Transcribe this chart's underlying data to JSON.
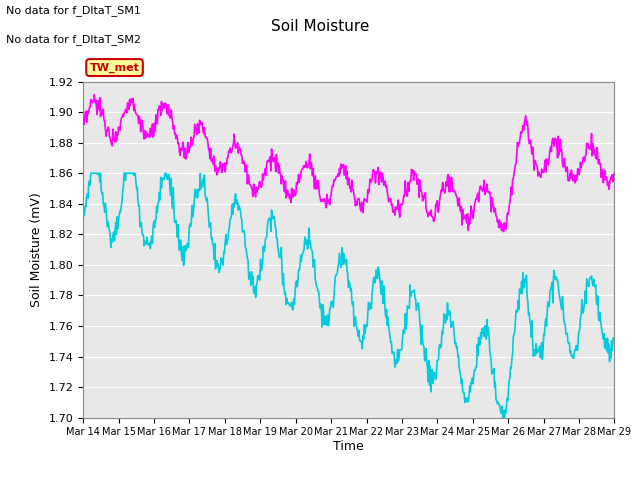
{
  "title": "Soil Moisture",
  "ylabel": "Soil Moisture (mV)",
  "xlabel": "Time",
  "ylim": [
    1.7,
    1.92
  ],
  "yticks": [
    1.7,
    1.72,
    1.74,
    1.76,
    1.78,
    1.8,
    1.82,
    1.84,
    1.86,
    1.88,
    1.9,
    1.92
  ],
  "color_sm1": "#FF00FF",
  "color_sm2": "#00CCDD",
  "annotation_text1": "No data for f_DltaT_SM1",
  "annotation_text2": "No data for f_DltaT_SM2",
  "legend_box_text": "TW_met",
  "legend_box_color": "#FFFF99",
  "legend_box_border": "#CC0000",
  "x_tick_labels": [
    "Mar 14",
    "Mar 15",
    "Mar 16",
    "Mar 17",
    "Mar 18",
    "Mar 19",
    "Mar 20",
    "Mar 21",
    "Mar 22",
    "Mar 23",
    "Mar 24",
    "Mar 25",
    "Mar 26",
    "Mar 27",
    "Mar 28",
    "Mar 29"
  ],
  "background_color": "#ffffff",
  "axes_bg_color": "#e8e8e8",
  "grid_color": "#ffffff"
}
